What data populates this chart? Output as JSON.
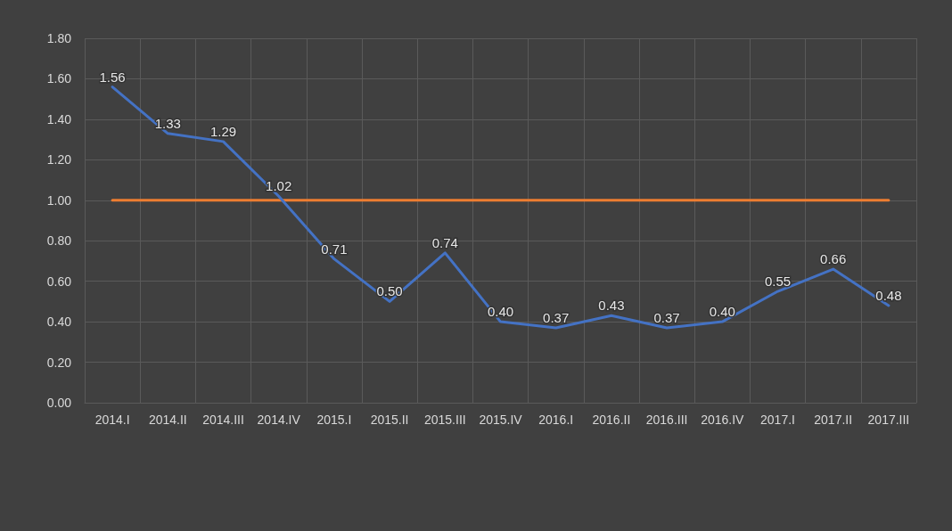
{
  "chart_data": {
    "type": "line",
    "categories": [
      "2014.I",
      "2014.II",
      "2014.III",
      "2014.IV",
      "2015.I",
      "2015.II",
      "2015.III",
      "2015.IV",
      "2016.I",
      "2016.II",
      "2016.III",
      "2016.IV",
      "2017.I",
      "2017.II",
      "2017.III"
    ],
    "series": [
      {
        "color": "#4472c4",
        "value_labels": [
          "1.56",
          "1.33",
          "1.29",
          "1.02",
          "0.71",
          "0.50",
          "0.74",
          "0.40",
          "0.37",
          "0.43",
          "0.37",
          "0.40",
          "0.55",
          "0.66",
          "0.48"
        ],
        "values": [
          1.56,
          1.33,
          1.29,
          1.02,
          0.71,
          0.5,
          0.74,
          0.4,
          0.37,
          0.43,
          0.37,
          0.4,
          0.55,
          0.66,
          0.48
        ]
      },
      {
        "color": "#ed7d31",
        "values": [
          1.0,
          1.0,
          1.0,
          1.0,
          1.0,
          1.0,
          1.0,
          1.0,
          1.0,
          1.0,
          1.0,
          1.0,
          1.0,
          1.0,
          1.0
        ]
      }
    ],
    "ylim": [
      0,
      1.8
    ],
    "yticks": [
      {
        "value": 0,
        "label": "0.00"
      },
      {
        "value": 0.2,
        "label": "0.20"
      },
      {
        "value": 0.4,
        "label": "0.40"
      },
      {
        "value": 0.6,
        "label": "0.60"
      },
      {
        "value": 0.8,
        "label": "0.80"
      },
      {
        "value": 1.0,
        "label": "1.00"
      },
      {
        "value": 1.2,
        "label": "1.20"
      },
      {
        "value": 1.4,
        "label": "1.40"
      },
      {
        "value": 1.6,
        "label": "1.60"
      },
      {
        "value": 1.8,
        "label": "1.80"
      }
    ],
    "grid": true,
    "marker": "none"
  }
}
